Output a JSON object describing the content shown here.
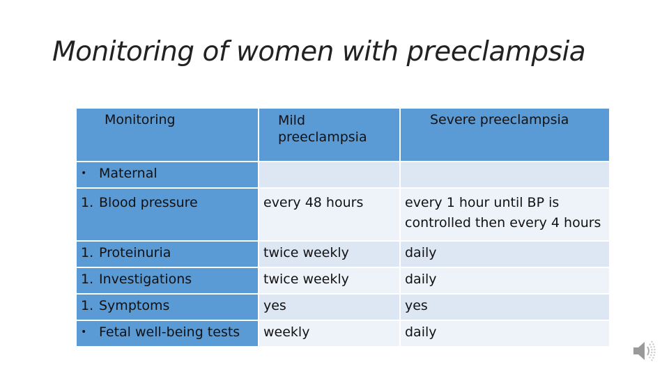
{
  "title": "Monitoring of women with preeclampsia",
  "table": {
    "headers": [
      "Monitoring",
      "Mild\npreeclampsia",
      "Severe preeclampsia"
    ],
    "rows": [
      {
        "marker": "•",
        "label": "Maternal",
        "mild": "",
        "severe": ""
      },
      {
        "marker": "1.",
        "label": "Blood pressure",
        "mild": "every 48 hours",
        "severe": "every 1 hour until BP is controlled then every 4 hours"
      },
      {
        "marker": "1.",
        "label": "Proteinuria",
        "mild": "twice weekly",
        "severe": "daily"
      },
      {
        "marker": "1.",
        "label": "Investigations",
        "mild": "twice weekly",
        "severe": "daily"
      },
      {
        "marker": "1.",
        "label": "Symptoms",
        "mild": "yes",
        "severe": "yes"
      },
      {
        "marker": "•",
        "label": "Fetal well-being tests",
        "mild": "weekly",
        "severe": "daily"
      }
    ]
  },
  "icons": {
    "speaker": "speaker-icon"
  },
  "colors": {
    "header": "#5b9bd5",
    "row_alt_1": "#dde6f3",
    "row_alt_2": "#eef3fa"
  }
}
